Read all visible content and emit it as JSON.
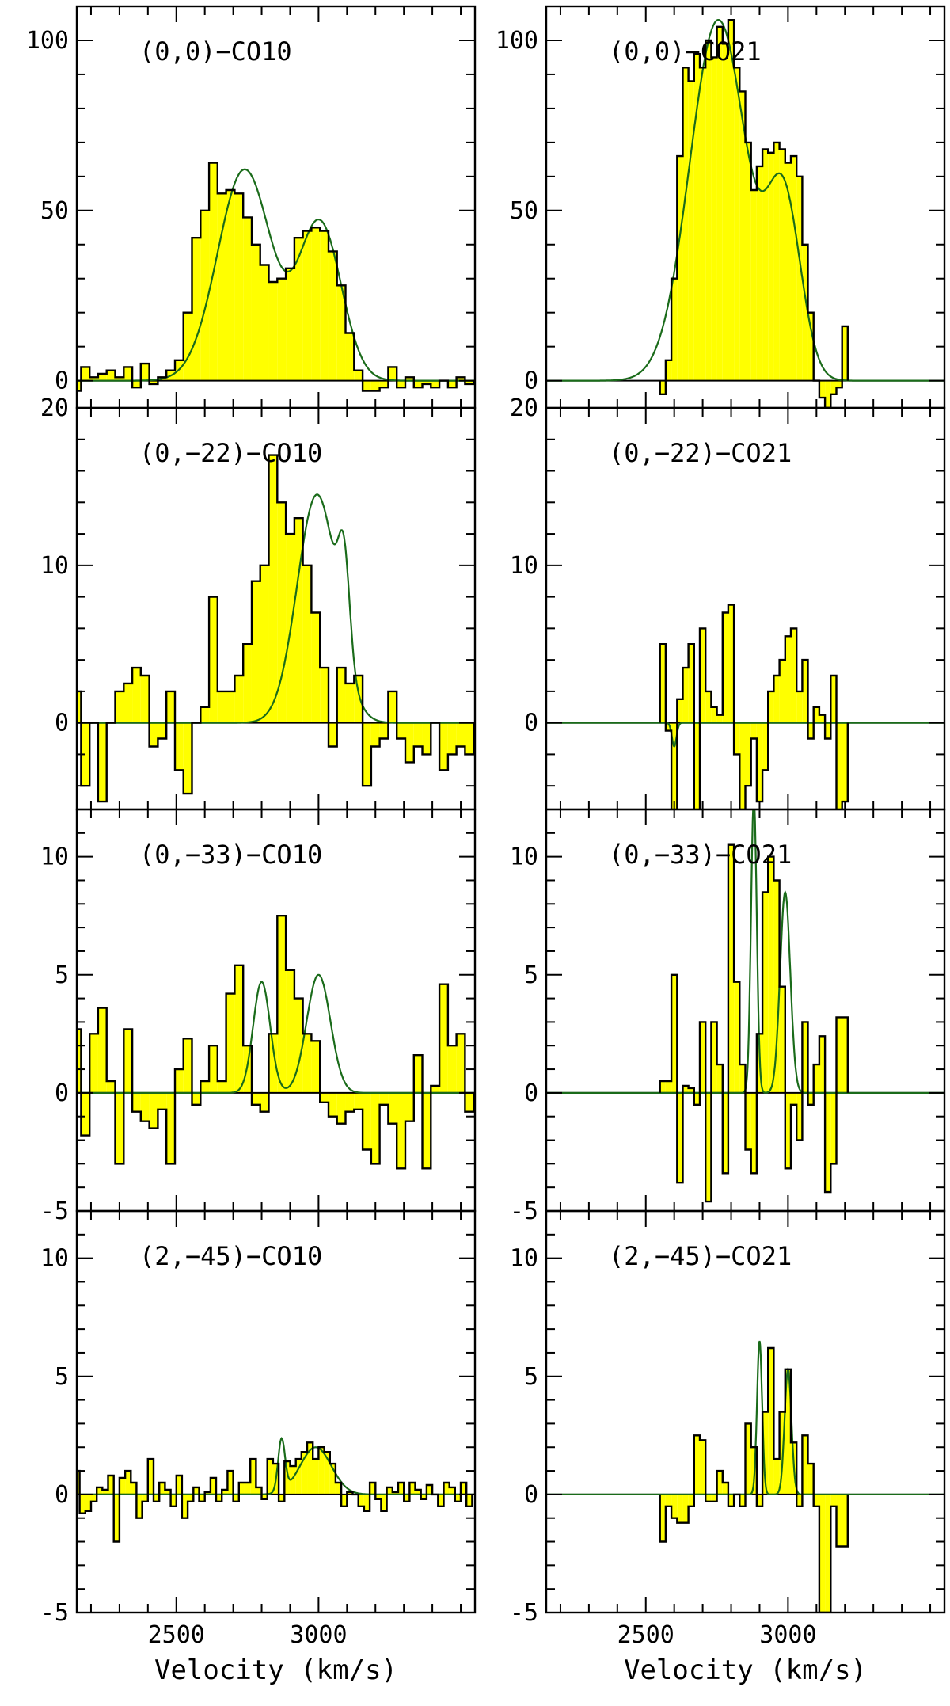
{
  "figure": {
    "xlabel": "Velocity (km/s)",
    "x_ticklabels": [
      "2500",
      "3000"
    ]
  },
  "colors": {
    "fill": "#ffff00",
    "model": "#1a6b1a",
    "spectrum": "#000000",
    "axes": "#000000"
  },
  "chart_data": [
    {
      "type": "line",
      "row": 0,
      "col": 0,
      "title": "(0,0)−CO10",
      "xlim": [
        2150,
        3550
      ],
      "ylim": [
        -8,
        110
      ],
      "y_ticks": [
        0,
        50,
        100
      ],
      "series": [
        {
          "name": "",
          "step": true,
          "bin_width": 30,
          "x": [
            2150,
            2180,
            2210,
            2240,
            2270,
            2300,
            2330,
            2360,
            2390,
            2420,
            2450,
            2480,
            2510,
            2540,
            2570,
            2600,
            2630,
            2660,
            2690,
            2720,
            2750,
            2780,
            2810,
            2840,
            2870,
            2900,
            2930,
            2960,
            2990,
            3020,
            3050,
            3080,
            3110,
            3140,
            3170,
            3200,
            3230,
            3260,
            3290,
            3320,
            3350,
            3380,
            3410,
            3440,
            3470,
            3500,
            3530
          ],
          "y": [
            -3,
            4,
            1,
            2,
            3,
            1,
            4,
            -2,
            5,
            -1,
            1,
            3,
            6,
            20,
            42,
            50,
            64,
            55,
            56,
            55,
            48,
            40,
            34,
            29,
            30,
            33,
            42,
            44,
            45,
            44,
            38,
            28,
            14,
            3,
            -3,
            -3,
            -2,
            4,
            -2,
            1,
            -2,
            -1,
            -2,
            0,
            -2,
            1,
            -1
          ]
        }
      ],
      "model": {
        "components": [
          {
            "center": 2740,
            "amplitude": 62,
            "sigma": 95
          },
          {
            "center": 3005,
            "amplitude": 46,
            "sigma": 75
          }
        ]
      }
    },
    {
      "type": "line",
      "row": 0,
      "col": 1,
      "title": "(0,0)−CO21",
      "xlim": [
        2150,
        3550
      ],
      "ylim": [
        -8,
        110
      ],
      "y_ticks": [
        0,
        50,
        100
      ],
      "series": [
        {
          "name": "",
          "step": true,
          "bin_width": 20,
          "x": [
            2560,
            2580,
            2600,
            2620,
            2640,
            2660,
            2680,
            2700,
            2720,
            2740,
            2760,
            2780,
            2800,
            2820,
            2840,
            2860,
            2880,
            2900,
            2920,
            2940,
            2960,
            2980,
            3000,
            3020,
            3040,
            3060,
            3080,
            3100,
            3120,
            3140,
            3160,
            3180,
            3200
          ],
          "y": [
            -4,
            6,
            30,
            66,
            92,
            88,
            96,
            92,
            100,
            95,
            104,
            99,
            106,
            92,
            85,
            70,
            56,
            63,
            68,
            67,
            70,
            68,
            64,
            66,
            60,
            40,
            20,
            0,
            -5,
            -8,
            -4,
            -2,
            16
          ]
        }
      ],
      "model": {
        "components": [
          {
            "center": 2755,
            "amplitude": 106,
            "sigma": 100
          },
          {
            "center": 2985,
            "amplitude": 52,
            "sigma": 60
          }
        ]
      }
    },
    {
      "type": "line",
      "row": 1,
      "col": 0,
      "title": "(0,−22)−CO10",
      "xlim": [
        2150,
        3550
      ],
      "ylim": [
        -5.5,
        20
      ],
      "y_ticks": [
        0,
        10,
        20
      ],
      "series": [
        {
          "name": "",
          "step": true,
          "bin_width": 30,
          "x": [
            2150,
            2180,
            2210,
            2240,
            2270,
            2300,
            2330,
            2360,
            2390,
            2420,
            2450,
            2480,
            2510,
            2540,
            2570,
            2600,
            2630,
            2660,
            2690,
            2720,
            2750,
            2780,
            2810,
            2840,
            2870,
            2900,
            2930,
            2960,
            2990,
            3020,
            3050,
            3080,
            3110,
            3140,
            3170,
            3200,
            3230,
            3260,
            3290,
            3320,
            3350,
            3380,
            3410,
            3440,
            3470,
            3500,
            3530
          ],
          "y": [
            2,
            -4,
            0,
            -5,
            0,
            2,
            2.5,
            3.5,
            3,
            -1.5,
            -1,
            2,
            -3,
            -4.5,
            0,
            1,
            8,
            2,
            2,
            3,
            5,
            9,
            10,
            17,
            14,
            12,
            13,
            10,
            7,
            3.5,
            -1.5,
            3.5,
            2.5,
            3,
            -4,
            -1.5,
            -1,
            2,
            -1,
            -2.5,
            -1.5,
            -2,
            0,
            -3,
            -2,
            -1.5,
            -2
          ]
        }
      ],
      "model": {
        "components": [
          {
            "center": 2995,
            "amplitude": 14.5,
            "sigma": 70
          },
          {
            "center": 3090,
            "amplitude": 6,
            "sigma": 20
          }
        ]
      }
    },
    {
      "type": "line",
      "row": 1,
      "col": 1,
      "title": "(0,−22)−CO21",
      "xlim": [
        2150,
        3550
      ],
      "ylim": [
        -5.5,
        20
      ],
      "y_ticks": [
        0,
        10,
        20
      ],
      "series": [
        {
          "name": "",
          "step": true,
          "bin_width": 20,
          "x": [
            2560,
            2580,
            2600,
            2620,
            2640,
            2660,
            2680,
            2700,
            2720,
            2740,
            2760,
            2780,
            2800,
            2820,
            2840,
            2860,
            2880,
            2900,
            2920,
            2940,
            2960,
            2980,
            3000,
            3020,
            3040,
            3060,
            3080,
            3100,
            3120,
            3140,
            3160,
            3180,
            3200
          ],
          "y": [
            5,
            -0.5,
            -6,
            1.5,
            3.5,
            5,
            -6,
            6,
            2,
            1,
            0.5,
            7,
            7.5,
            -2,
            -6,
            -4,
            -1,
            -5,
            -3,
            2,
            3,
            4,
            5.5,
            6,
            2,
            4,
            -1,
            1,
            0.5,
            -1,
            3,
            -6,
            -5
          ]
        }
      ],
      "model": {
        "components": [
          {
            "center": 2600,
            "amplitude": -1.5,
            "sigma": 8
          }
        ]
      }
    },
    {
      "type": "line",
      "row": 2,
      "col": 0,
      "title": "(0,−33)−CO10",
      "xlim": [
        2150,
        3550
      ],
      "ylim": [
        -5,
        12
      ],
      "y_ticks": [
        -5,
        0,
        5,
        10
      ],
      "series": [
        {
          "name": "",
          "step": true,
          "bin_width": 30,
          "x": [
            2150,
            2180,
            2210,
            2240,
            2270,
            2300,
            2330,
            2360,
            2390,
            2420,
            2450,
            2480,
            2510,
            2540,
            2570,
            2600,
            2630,
            2660,
            2690,
            2720,
            2750,
            2780,
            2810,
            2840,
            2870,
            2900,
            2930,
            2960,
            2990,
            3020,
            3050,
            3080,
            3110,
            3140,
            3170,
            3200,
            3230,
            3260,
            3290,
            3320,
            3350,
            3380,
            3410,
            3440,
            3470,
            3500,
            3530
          ],
          "y": [
            2.7,
            -1.8,
            2.5,
            3.6,
            0.5,
            -3,
            2.7,
            -0.8,
            -1.2,
            -1.5,
            -0.7,
            -3,
            1,
            2.3,
            -0.5,
            0.5,
            2,
            0.5,
            4.2,
            5.4,
            2,
            -0.5,
            -0.8,
            2.5,
            7.5,
            5.2,
            4,
            2.5,
            2.2,
            -0.4,
            -1,
            -1.3,
            -0.8,
            -0.7,
            -2.4,
            -3,
            -0.5,
            -1.3,
            -3.2,
            -1.2,
            1.6,
            -3.2,
            0.3,
            4.6,
            2,
            2.5,
            -0.8
          ]
        }
      ],
      "model": {
        "components": [
          {
            "center": 2800,
            "amplitude": 4.7,
            "sigma": 30
          },
          {
            "center": 3000,
            "amplitude": 5.0,
            "sigma": 42
          }
        ]
      }
    },
    {
      "type": "line",
      "row": 2,
      "col": 1,
      "title": "(0,−33)−CO21",
      "xlim": [
        2150,
        3550
      ],
      "ylim": [
        -5,
        12
      ],
      "y_ticks": [
        -5,
        0,
        5,
        10
      ],
      "series": [
        {
          "name": "",
          "step": true,
          "bin_width": 20,
          "x": [
            2560,
            2580,
            2600,
            2620,
            2640,
            2660,
            2680,
            2700,
            2720,
            2740,
            2760,
            2780,
            2800,
            2820,
            2840,
            2860,
            2880,
            2900,
            2920,
            2940,
            2960,
            2980,
            3000,
            3020,
            3040,
            3060,
            3080,
            3100,
            3120,
            3140,
            3160,
            3180,
            3200
          ],
          "y": [
            0.5,
            0.5,
            5,
            -3.8,
            0.3,
            0.2,
            -0.5,
            3,
            -4.6,
            3,
            1.2,
            -3.4,
            10.5,
            4.7,
            1.2,
            -2.4,
            -3.4,
            2.5,
            8.5,
            10,
            9,
            4.5,
            -3.2,
            -0.5,
            -2,
            3,
            -0.5,
            1.2,
            2.4,
            -4.2,
            -3,
            3.2,
            3.2
          ]
        }
      ],
      "model": {
        "components": [
          {
            "center": 2880,
            "amplitude": 12.5,
            "sigma": 10
          },
          {
            "center": 2990,
            "amplitude": 8.5,
            "sigma": 18
          }
        ]
      }
    },
    {
      "type": "line",
      "row": 3,
      "col": 0,
      "title": "(2,−45)−CO10",
      "xlim": [
        2150,
        3550
      ],
      "ylim": [
        -5,
        12
      ],
      "y_ticks": [
        -5,
        0,
        5,
        10
      ],
      "series": [
        {
          "name": "",
          "step": true,
          "bin_width": 20,
          "x": [
            2150,
            2170,
            2190,
            2210,
            2230,
            2250,
            2270,
            2290,
            2310,
            2330,
            2350,
            2370,
            2390,
            2410,
            2430,
            2450,
            2470,
            2490,
            2510,
            2530,
            2550,
            2570,
            2590,
            2610,
            2630,
            2650,
            2670,
            2690,
            2710,
            2730,
            2750,
            2770,
            2790,
            2810,
            2830,
            2850,
            2870,
            2890,
            2910,
            2930,
            2950,
            2970,
            2990,
            3010,
            3030,
            3050,
            3070,
            3090,
            3110,
            3130,
            3150,
            3170,
            3190,
            3210,
            3230,
            3250,
            3270,
            3290,
            3310,
            3330,
            3350,
            3370,
            3390,
            3410,
            3430,
            3450,
            3470,
            3490,
            3510,
            3530
          ],
          "y": [
            1,
            -0.8,
            -0.7,
            -0.3,
            0.3,
            0.2,
            0.8,
            -2,
            0.7,
            1,
            0.5,
            -1,
            -0.3,
            1.5,
            -0.3,
            0.5,
            0.2,
            -0.5,
            0.8,
            -1,
            -0.3,
            0.3,
            -0.3,
            0.1,
            0.7,
            -0.3,
            0.2,
            1,
            -0.3,
            0.5,
            0.5,
            1.5,
            0.3,
            -0.2,
            1.5,
            1.3,
            -0.3,
            1.4,
            1.2,
            1.5,
            1.8,
            2.2,
            1.5,
            2,
            1.8,
            1.3,
            0.5,
            -0.5,
            0.1,
            0,
            -0.5,
            -0.7,
            0.5,
            -0.2,
            -0.7,
            0.3,
            0.1,
            0.5,
            -0.3,
            0.5,
            0.2,
            -0.2,
            0.4,
            0,
            -0.5,
            0.5,
            0.3,
            -0.3,
            0.5,
            -0.5
          ]
        }
      ],
      "model": {
        "components": [
          {
            "center": 2870,
            "amplitude": 2.2,
            "sigma": 12
          },
          {
            "center": 2990,
            "amplitude": 2.0,
            "sigma": 55
          }
        ]
      }
    },
    {
      "type": "line",
      "row": 3,
      "col": 1,
      "title": "(2,−45)−CO21",
      "xlim": [
        2150,
        3550
      ],
      "ylim": [
        -5,
        12
      ],
      "y_ticks": [
        -5,
        0,
        5,
        10
      ],
      "series": [
        {
          "name": "",
          "step": true,
          "bin_width": 20,
          "x": [
            2560,
            2580,
            2600,
            2620,
            2640,
            2660,
            2680,
            2700,
            2720,
            2740,
            2760,
            2780,
            2800,
            2820,
            2840,
            2860,
            2880,
            2900,
            2920,
            2940,
            2960,
            2980,
            3000,
            3020,
            3040,
            3060,
            3080,
            3100,
            3120,
            3140,
            3160,
            3180,
            3200
          ],
          "y": [
            -2,
            -0.5,
            -1,
            -1.2,
            -1.2,
            -0.5,
            2.5,
            2.3,
            -0.3,
            -0.3,
            1,
            0.5,
            -0.5,
            0,
            -0.5,
            3,
            2,
            -0.5,
            3.5,
            6.2,
            1.5,
            3.5,
            5.3,
            2.2,
            -0.5,
            2.5,
            1.3,
            -0.5,
            -5,
            -5,
            -0.5,
            -2.2,
            -2.2
          ]
        }
      ],
      "model": {
        "components": [
          {
            "center": 2900,
            "amplitude": 6.5,
            "sigma": 9
          },
          {
            "center": 3000,
            "amplitude": 5.3,
            "sigma": 12
          }
        ]
      }
    }
  ]
}
